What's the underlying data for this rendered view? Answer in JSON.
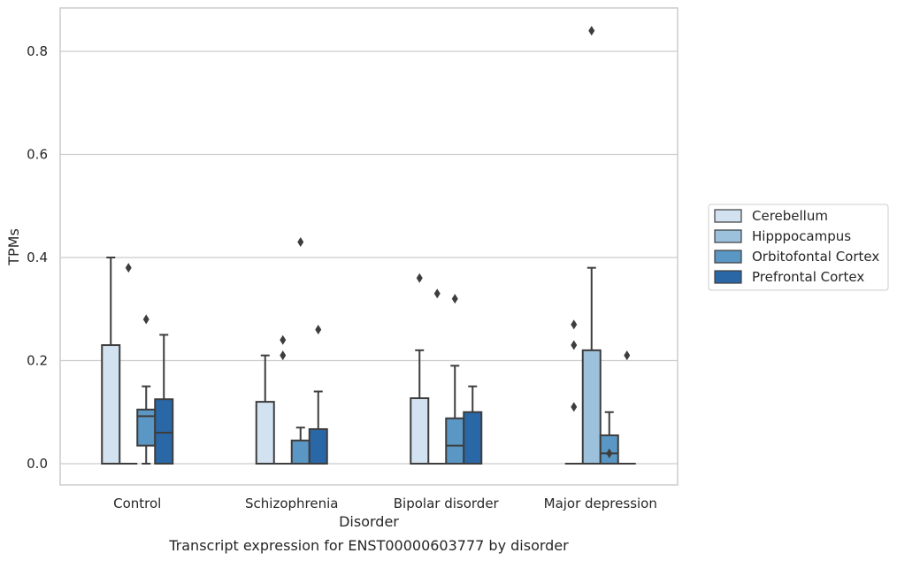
{
  "chart_data": {
    "type": "box",
    "caption": "Transcript expression for ENST00000603777 by disorder",
    "xlabel": "Disorder",
    "ylabel": "TPMs",
    "ylim": [
      -0.04,
      0.885
    ],
    "yticks": [
      0.0,
      0.2,
      0.4,
      0.6,
      0.8
    ],
    "ytick_labels": [
      "0.0",
      "0.2",
      "0.4",
      "0.6",
      "0.8"
    ],
    "grid": "horizontal",
    "legend_position": "right",
    "categories": [
      "Control",
      "Schizophrenia",
      "Bipolar disorder",
      "Major depression"
    ],
    "series": [
      {
        "name": "Cerebellum",
        "color": "#d2e2f0",
        "boxes": [
          {
            "q1": 0.0,
            "median": 0.0,
            "q3": 0.23,
            "whislo": 0.0,
            "whishi": 0.4,
            "fliers": []
          },
          {
            "q1": 0.0,
            "median": 0.0,
            "q3": 0.12,
            "whislo": 0.0,
            "whishi": 0.21,
            "fliers": []
          },
          {
            "q1": 0.0,
            "median": 0.0,
            "q3": 0.127,
            "whislo": 0.0,
            "whishi": 0.22,
            "fliers": [
              0.36
            ]
          },
          {
            "q1": 0.0,
            "median": 0.0,
            "q3": 0.0,
            "whislo": 0.0,
            "whishi": 0.0,
            "fliers": [
              0.27,
              0.23,
              0.11
            ]
          }
        ]
      },
      {
        "name": "Hipppocampus",
        "color": "#9cc1dc",
        "boxes": [
          {
            "q1": 0.0,
            "median": 0.0,
            "q3": 0.0,
            "whislo": 0.0,
            "whishi": 0.0,
            "fliers": [
              0.38
            ]
          },
          {
            "q1": 0.0,
            "median": 0.0,
            "q3": 0.0,
            "whislo": 0.0,
            "whishi": 0.0,
            "fliers": [
              0.24,
              0.21
            ]
          },
          {
            "q1": 0.0,
            "median": 0.0,
            "q3": 0.0,
            "whislo": 0.0,
            "whishi": 0.0,
            "fliers": [
              0.33
            ]
          },
          {
            "q1": 0.0,
            "median": 0.0,
            "q3": 0.22,
            "whislo": 0.0,
            "whishi": 0.38,
            "fliers": [
              0.84
            ]
          }
        ]
      },
      {
        "name": "Orbitofontal Cortex",
        "color": "#5b97c4",
        "boxes": [
          {
            "q1": 0.035,
            "median": 0.092,
            "q3": 0.105,
            "whislo": 0.0,
            "whishi": 0.15,
            "fliers": [
              0.28
            ]
          },
          {
            "q1": 0.0,
            "median": 0.0,
            "q3": 0.045,
            "whislo": 0.0,
            "whishi": 0.07,
            "fliers": [
              0.43
            ]
          },
          {
            "q1": 0.0,
            "median": 0.035,
            "q3": 0.088,
            "whislo": 0.0,
            "whishi": 0.19,
            "fliers": [
              0.32
            ]
          },
          {
            "q1": 0.0,
            "median": 0.02,
            "q3": 0.055,
            "whislo": 0.0,
            "whishi": 0.1,
            "fliers": [
              0.02
            ]
          }
        ]
      },
      {
        "name": "Prefrontal Cortex",
        "color": "#2a67a6",
        "boxes": [
          {
            "q1": 0.0,
            "median": 0.06,
            "q3": 0.125,
            "whislo": 0.0,
            "whishi": 0.25,
            "fliers": []
          },
          {
            "q1": 0.0,
            "median": 0.0,
            "q3": 0.067,
            "whislo": 0.0,
            "whishi": 0.14,
            "fliers": [
              0.26
            ]
          },
          {
            "q1": 0.0,
            "median": 0.0,
            "q3": 0.1,
            "whislo": 0.0,
            "whishi": 0.15,
            "fliers": []
          },
          {
            "q1": 0.0,
            "median": 0.0,
            "q3": 0.0,
            "whislo": 0.0,
            "whishi": 0.0,
            "fliers": [
              0.21
            ]
          }
        ]
      }
    ]
  }
}
